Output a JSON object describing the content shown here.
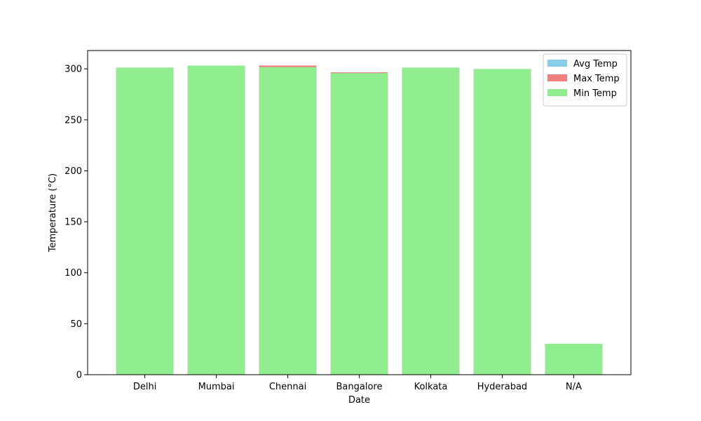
{
  "chart_data": {
    "type": "bar",
    "title": "",
    "xlabel": "Date",
    "ylabel": "Temperature (°C)",
    "categories": [
      "Delhi",
      "Mumbai",
      "Chennai",
      "Bangalore",
      "Kolkata",
      "Hyderabad",
      "N/A"
    ],
    "ylim": [
      0,
      318
    ],
    "yticks": [
      "0",
      "50",
      "100",
      "150",
      "200",
      "250",
      "300"
    ],
    "grid": false,
    "legend_position": "top-right",
    "series": [
      {
        "name": "Avg Temp",
        "color": "#87CEEB",
        "values": [
          301.2,
          303.2,
          301.7,
          295.8,
          301.2,
          299.8,
          30.3
        ]
      },
      {
        "name": "Max Temp",
        "color": "#F08080",
        "values": [
          301.2,
          303.2,
          303.3,
          296.6,
          301.2,
          299.8,
          30.3
        ]
      },
      {
        "name": "Min Temp",
        "color": "#90EE90",
        "values": [
          301.2,
          303.2,
          301.7,
          295.8,
          301.2,
          299.8,
          30.3
        ]
      }
    ]
  }
}
